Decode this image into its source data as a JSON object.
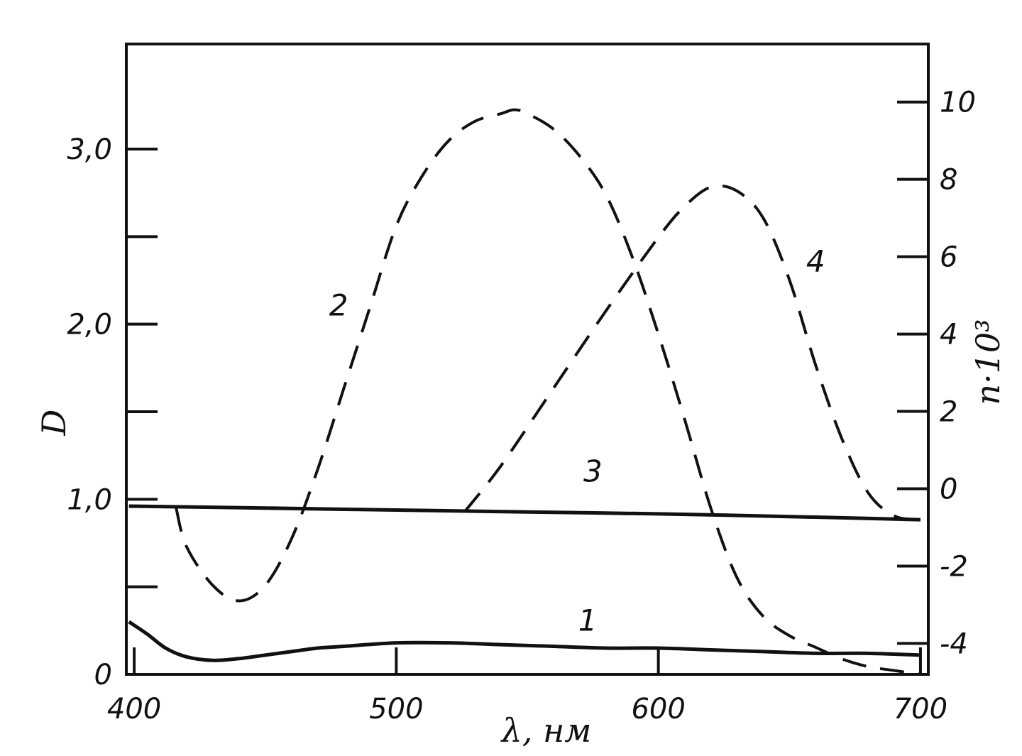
{
  "chart_data": {
    "type": "line",
    "title": "",
    "xlabel": "λ, нм",
    "ylabel_left": "D",
    "ylabel_right": "n·10³",
    "xlim": [
      397,
      703
    ],
    "ylim_left": [
      0,
      3.6
    ],
    "ylim_right": [
      -4.8,
      11.5
    ],
    "x_ticks": [
      400,
      500,
      600,
      700
    ],
    "x_tick_labels": [
      "400",
      "500",
      "600",
      "700"
    ],
    "left_ticks": [
      0,
      0.5,
      1.0,
      1.5,
      2.0,
      2.5,
      3.0
    ],
    "left_tick_labels": [
      "0",
      "",
      "1,0",
      "",
      "2,0",
      "",
      "3,0"
    ],
    "right_ticks": [
      -4,
      -2,
      0,
      2,
      4,
      6,
      8,
      10
    ],
    "right_tick_labels": [
      "-4",
      "-2",
      "0",
      "2",
      "4",
      "6",
      "8",
      "10"
    ],
    "grid": false,
    "series": [
      {
        "name": "1",
        "axis": "left",
        "style": "solid",
        "x": [
          398,
          405,
          412,
          420,
          430,
          440,
          450,
          460,
          470,
          480,
          500,
          520,
          540,
          560,
          580,
          600,
          620,
          640,
          660,
          680,
          700
        ],
        "y": [
          0.3,
          0.23,
          0.15,
          0.1,
          0.08,
          0.09,
          0.11,
          0.13,
          0.15,
          0.16,
          0.18,
          0.18,
          0.17,
          0.16,
          0.15,
          0.15,
          0.14,
          0.13,
          0.12,
          0.12,
          0.11
        ]
      },
      {
        "name": "2",
        "axis": "right",
        "style": "dashed",
        "x": [
          416,
          420,
          430,
          440,
          450,
          460,
          470,
          480,
          490,
          500,
          510,
          520,
          530,
          540,
          545,
          550,
          560,
          570,
          580,
          590,
          600,
          610,
          620,
          630,
          640,
          650,
          660,
          670,
          680,
          690,
          700
        ],
        "y": [
          -0.5,
          -1.5,
          -2.5,
          -2.9,
          -2.5,
          -1.3,
          0.5,
          2.6,
          4.7,
          6.8,
          8.1,
          9.0,
          9.5,
          9.7,
          9.8,
          9.7,
          9.3,
          8.6,
          7.6,
          6.0,
          4.0,
          1.8,
          -0.5,
          -2.3,
          -3.3,
          -3.8,
          -4.1,
          -4.4,
          -4.6,
          -4.7,
          -4.8
        ]
      },
      {
        "name": "3",
        "axis": "right",
        "style": "solid",
        "x": [
          398,
          450,
          500,
          550,
          600,
          650,
          700
        ],
        "y": [
          -0.45,
          -0.5,
          -0.55,
          -0.6,
          -0.65,
          -0.72,
          -0.8
        ]
      },
      {
        "name": "4",
        "axis": "right",
        "style": "dashed",
        "x": [
          526,
          540,
          560,
          580,
          600,
          610,
          620,
          630,
          640,
          650,
          660,
          670,
          680,
          690,
          700
        ],
        "y": [
          -0.6,
          0.6,
          2.6,
          4.6,
          6.5,
          7.3,
          7.8,
          7.7,
          7.0,
          5.4,
          3.2,
          1.3,
          -0.1,
          -0.7,
          -0.8
        ]
      }
    ],
    "annotations": [
      {
        "text": "1",
        "x": 573,
        "y": 0.25,
        "axis": "left"
      },
      {
        "text": "2",
        "x": 478,
        "y": 2.05,
        "axis": "left"
      },
      {
        "text": "3",
        "x": 575,
        "y": 1.1,
        "axis": "left"
      },
      {
        "text": "4",
        "x": 660,
        "y": 2.3,
        "axis": "left"
      }
    ]
  }
}
